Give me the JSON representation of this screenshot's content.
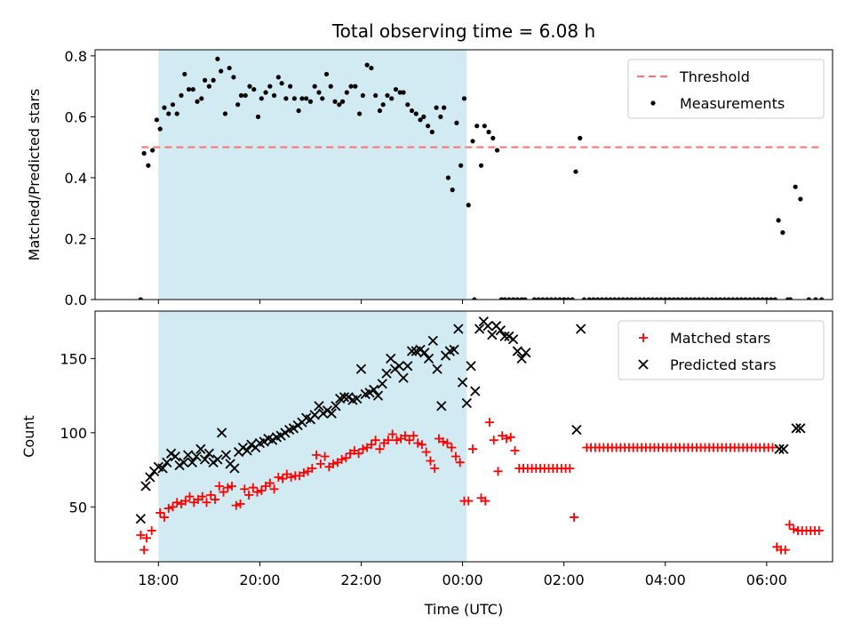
{
  "chart_data": [
    {
      "type": "scatter",
      "title": "Total observing time = 6.08 h",
      "xlabel": "",
      "ylabel": "Matched/Predicted stars",
      "ylim": [
        0.0,
        0.82
      ],
      "xlim_hours": [
        16.75,
        31.3
      ],
      "yticks": [
        0.0,
        0.2,
        0.4,
        0.6,
        0.8
      ],
      "ytick_labels": [
        "0.0",
        "0.2",
        "0.4",
        "0.6",
        "0.8"
      ],
      "shaded_span": {
        "x_start": "18:00",
        "x_end": "00:05",
        "color": "#add8e6"
      },
      "threshold": {
        "label": "Threshold",
        "value": 0.5,
        "x_start": "17:40",
        "x_end": "07:05",
        "color": "#ff7070"
      },
      "legend": {
        "placement": "top-right",
        "entries": [
          "Threshold",
          "Measurements"
        ]
      },
      "series": [
        {
          "name": "Measurements",
          "color": "#000000",
          "marker": "dot",
          "x": [
            "17:39",
            "17:43",
            "17:48",
            "17:53",
            "17:58",
            "18:02",
            "18:07",
            "18:12",
            "18:17",
            "18:22",
            "18:27",
            "18:31",
            "18:36",
            "18:41",
            "18:46",
            "18:51",
            "18:55",
            "19:00",
            "19:05",
            "19:10",
            "19:14",
            "19:19",
            "19:24",
            "19:29",
            "19:34",
            "19:38",
            "19:43",
            "19:48",
            "19:53",
            "19:58",
            "20:02",
            "20:07",
            "20:12",
            "20:17",
            "20:22",
            "20:26",
            "20:31",
            "20:36",
            "20:41",
            "20:46",
            "20:50",
            "20:55",
            "21:00",
            "21:05",
            "21:10",
            "21:14",
            "21:19",
            "21:24",
            "21:29",
            "21:34",
            "21:38",
            "21:43",
            "21:48",
            "21:53",
            "21:58",
            "22:02",
            "22:07",
            "22:12",
            "22:17",
            "22:22",
            "22:26",
            "22:31",
            "22:36",
            "22:41",
            "22:46",
            "22:50",
            "22:55",
            "23:00",
            "23:05",
            "23:10",
            "23:14",
            "23:19",
            "23:24",
            "23:29",
            "23:34",
            "23:38",
            "23:43",
            "23:48",
            "23:53",
            "23:58",
            "00:02",
            "00:07",
            "00:12",
            "00:17",
            "00:22",
            "00:26",
            "00:31",
            "00:36",
            "00:41",
            "00:46",
            "00:50",
            "00:55",
            "01:00",
            "01:05",
            "01:10",
            "01:14",
            "02:14",
            "02:19",
            "06:14",
            "06:19",
            "06:34",
            "06:40"
          ],
          "y": [
            0.0,
            0.48,
            0.44,
            0.49,
            0.59,
            0.56,
            0.63,
            0.61,
            0.64,
            0.61,
            0.67,
            0.74,
            0.69,
            0.69,
            0.65,
            0.66,
            0.72,
            0.7,
            0.72,
            0.79,
            0.75,
            0.61,
            0.76,
            0.73,
            0.64,
            0.67,
            0.67,
            0.7,
            0.69,
            0.6,
            0.66,
            0.68,
            0.7,
            0.67,
            0.73,
            0.71,
            0.66,
            0.7,
            0.66,
            0.62,
            0.66,
            0.66,
            0.65,
            0.7,
            0.68,
            0.66,
            0.74,
            0.7,
            0.65,
            0.64,
            0.65,
            0.68,
            0.7,
            0.7,
            0.61,
            0.67,
            0.77,
            0.76,
            0.67,
            0.62,
            0.64,
            0.67,
            0.66,
            0.69,
            0.68,
            0.68,
            0.64,
            0.62,
            0.61,
            0.59,
            0.6,
            0.57,
            0.55,
            0.63,
            0.6,
            0.63,
            0.4,
            0.36,
            0.58,
            0.44,
            0.66,
            0.31,
            0.52,
            0.57,
            0.44,
            0.57,
            0.55,
            0.53,
            0.49,
            0.0,
            0.0,
            0.0,
            0.0,
            0.0,
            0.0,
            0.0,
            0.42,
            0.53,
            0.26,
            0.22,
            0.37,
            0.33
          ],
          "zeros_x": [
            "00:14",
            "01:25",
            "01:30",
            "01:35",
            "01:40",
            "01:45",
            "01:50",
            "01:55",
            "02:00",
            "02:05",
            "02:10",
            "02:24",
            "02:30",
            "02:35",
            "02:40",
            "02:45",
            "02:50",
            "02:55",
            "03:00",
            "03:05",
            "03:10",
            "03:15",
            "03:20",
            "03:25",
            "03:30",
            "03:35",
            "03:40",
            "03:45",
            "03:50",
            "03:55",
            "04:00",
            "04:05",
            "04:10",
            "04:15",
            "04:20",
            "04:25",
            "04:30",
            "04:35",
            "04:40",
            "04:45",
            "04:50",
            "04:55",
            "05:00",
            "05:05",
            "05:10",
            "05:15",
            "05:20",
            "05:25",
            "05:30",
            "05:35",
            "05:40",
            "05:45",
            "05:50",
            "05:55",
            "06:00",
            "06:05",
            "06:10",
            "06:25",
            "06:28",
            "06:50",
            "06:58",
            "07:05"
          ]
        }
      ]
    },
    {
      "type": "scatter",
      "title": "",
      "xlabel": "Time (UTC)",
      "ylabel": "Count",
      "ylim": [
        13,
        182
      ],
      "xlim_hours": [
        16.75,
        31.3
      ],
      "yticks": [
        50,
        100,
        150
      ],
      "ytick_labels": [
        "50",
        "100",
        "150"
      ],
      "xticks": [
        "18:00",
        "20:00",
        "22:00",
        "00:00",
        "02:00",
        "04:00",
        "06:00"
      ],
      "shaded_span": {
        "x_start": "18:00",
        "x_end": "00:05",
        "color": "#add8e6"
      },
      "legend": {
        "placement": "top-right",
        "entries": [
          "Matched stars",
          "Predicted stars"
        ]
      },
      "series": [
        {
          "name": "Matched stars",
          "color": "#ff0000",
          "marker": "plus",
          "x": [
            "17:39",
            "17:43",
            "17:46",
            "17:52",
            "18:02",
            "18:07",
            "18:12",
            "18:17",
            "18:22",
            "18:27",
            "18:32",
            "18:37",
            "18:42",
            "18:47",
            "18:52",
            "18:57",
            "19:02",
            "19:07",
            "19:12",
            "19:17",
            "19:22",
            "19:27",
            "19:32",
            "19:37",
            "19:42",
            "19:47",
            "19:52",
            "19:57",
            "20:02",
            "20:07",
            "20:12",
            "20:17",
            "20:22",
            "20:27",
            "20:32",
            "20:37",
            "20:42",
            "20:47",
            "20:52",
            "20:57",
            "21:02",
            "21:07",
            "21:12",
            "21:17",
            "21:22",
            "21:27",
            "21:32",
            "21:37",
            "21:42",
            "21:47",
            "21:52",
            "21:57",
            "22:02",
            "22:07",
            "22:12",
            "22:17",
            "22:22",
            "22:27",
            "22:32",
            "22:37",
            "22:42",
            "22:47",
            "22:52",
            "22:57",
            "23:02",
            "23:07",
            "23:12",
            "23:17",
            "23:22",
            "23:27",
            "23:32",
            "23:37",
            "23:42",
            "23:47",
            "23:52",
            "23:57",
            "00:02",
            "00:07",
            "00:12",
            "00:22",
            "00:27",
            "00:32",
            "00:37",
            "00:42",
            "00:47",
            "00:52",
            "00:57",
            "01:02",
            "01:07",
            "01:12",
            "02:12",
            "06:12",
            "06:17",
            "06:22",
            "06:27",
            "06:32",
            "06:37",
            "06:42",
            "06:47",
            "06:52",
            "06:57",
            "07:02"
          ],
          "y": [
            31,
            21,
            29,
            34,
            46,
            43,
            49,
            50,
            53,
            52,
            54,
            57,
            53,
            55,
            57,
            53,
            58,
            55,
            64,
            60,
            63,
            64,
            51,
            52,
            62,
            58,
            63,
            60,
            61,
            64,
            66,
            62,
            70,
            69,
            72,
            70,
            71,
            71,
            73,
            74,
            76,
            85,
            79,
            84,
            77,
            79,
            80,
            82,
            83,
            86,
            88,
            86,
            89,
            90,
            92,
            95,
            89,
            93,
            95,
            99,
            95,
            96,
            98,
            95,
            98,
            93,
            92,
            87,
            81,
            76,
            96,
            94,
            93,
            90,
            84,
            80,
            54,
            54,
            89,
            56,
            54,
            107,
            95,
            74,
            98,
            96,
            97,
            88,
            76,
            76,
            43,
            23,
            21,
            21,
            38,
            35,
            34,
            34,
            34,
            34,
            34,
            34
          ],
          "flat_segments": [
            {
              "x_start": "01:12",
              "x_end": "02:07",
              "y": 76
            },
            {
              "x_start": "02:27",
              "x_end": "06:08",
              "y": 90
            }
          ]
        },
        {
          "name": "Predicted stars",
          "color": "#000000",
          "marker": "x",
          "x": [
            "17:39",
            "17:45",
            "17:50",
            "17:55",
            "18:00",
            "18:05",
            "18:10",
            "18:15",
            "18:20",
            "18:25",
            "18:30",
            "18:35",
            "18:40",
            "18:45",
            "18:50",
            "18:55",
            "19:00",
            "19:05",
            "19:10",
            "19:15",
            "19:20",
            "19:25",
            "19:30",
            "19:35",
            "19:40",
            "19:45",
            "19:50",
            "19:55",
            "20:00",
            "20:05",
            "20:10",
            "20:15",
            "20:20",
            "20:25",
            "20:30",
            "20:35",
            "20:40",
            "20:45",
            "20:50",
            "20:55",
            "21:00",
            "21:05",
            "21:10",
            "21:15",
            "21:20",
            "21:25",
            "21:30",
            "21:35",
            "21:40",
            "21:45",
            "21:50",
            "21:55",
            "22:00",
            "22:05",
            "22:10",
            "22:15",
            "22:20",
            "22:25",
            "22:30",
            "22:35",
            "22:40",
            "22:45",
            "22:50",
            "22:55",
            "23:00",
            "23:05",
            "23:10",
            "23:15",
            "23:20",
            "23:25",
            "23:30",
            "23:35",
            "23:40",
            "23:45",
            "23:50",
            "23:55",
            "00:00",
            "00:05",
            "00:10",
            "00:15",
            "00:20",
            "00:25",
            "00:30",
            "00:35",
            "00:40",
            "00:45",
            "00:50",
            "00:55",
            "01:00",
            "01:05",
            "01:10",
            "01:15",
            "02:15",
            "02:20",
            "06:15",
            "06:20",
            "06:35",
            "06:40"
          ],
          "y": [
            42,
            64,
            70,
            74,
            77,
            76,
            80,
            86,
            84,
            78,
            80,
            85,
            80,
            84,
            89,
            82,
            86,
            80,
            82,
            100,
            85,
            79,
            76,
            87,
            90,
            88,
            92,
            90,
            93,
            94,
            96,
            95,
            97,
            98,
            100,
            102,
            103,
            105,
            107,
            110,
            109,
            112,
            118,
            113,
            115,
            113,
            118,
            123,
            124,
            124,
            122,
            123,
            143,
            126,
            127,
            129,
            125,
            133,
            140,
            150,
            143,
            145,
            137,
            145,
            155,
            155,
            156,
            154,
            150,
            162,
            143,
            118,
            152,
            155,
            156,
            170,
            134,
            120,
            145,
            128,
            170,
            175,
            172,
            166,
            172,
            169,
            165,
            165,
            163,
            155,
            150,
            154,
            102,
            170,
            89,
            89,
            103,
            103
          ]
        }
      ]
    }
  ]
}
